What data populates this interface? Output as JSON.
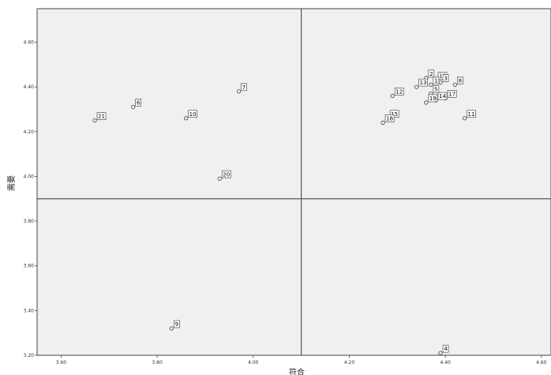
{
  "chart_data": {
    "type": "scatter",
    "xlabel": "符合",
    "ylabel": "需要",
    "xlim": [
      3.55,
      4.62
    ],
    "ylim": [
      3.2,
      4.75
    ],
    "x_ticks": [
      "3.60",
      "3.80",
      "4.00",
      "4.20",
      "4.40",
      "4.60"
    ],
    "y_ticks": [
      "3.20",
      "3.40",
      "3.60",
      "3.80",
      "4.00",
      "4.20",
      "4.40",
      "4.60"
    ],
    "reference_lines": {
      "x": 4.1,
      "y": 3.9
    },
    "grid": false,
    "colors": {
      "plot_background": "#f0f0f0",
      "marker": "#555555",
      "reference_line": "#555555"
    },
    "points": [
      {
        "label": "21",
        "x": 3.67,
        "y": 4.25
      },
      {
        "label": "6",
        "x": 3.75,
        "y": 4.31
      },
      {
        "label": "10",
        "x": 3.86,
        "y": 4.26
      },
      {
        "label": "7",
        "x": 3.97,
        "y": 4.38
      },
      {
        "label": "20",
        "x": 3.93,
        "y": 3.99
      },
      {
        "label": "9",
        "x": 3.83,
        "y": 3.32
      },
      {
        "label": "4",
        "x": 4.39,
        "y": 3.21
      },
      {
        "label": "2",
        "x": 4.36,
        "y": 4.44
      },
      {
        "label": "18",
        "x": 4.38,
        "y": 4.43
      },
      {
        "label": "3",
        "x": 4.39,
        "y": 4.42
      },
      {
        "label": "1",
        "x": 4.37,
        "y": 4.41
      },
      {
        "label": "13",
        "x": 4.34,
        "y": 4.4
      },
      {
        "label": "12",
        "x": 4.29,
        "y": 4.36
      },
      {
        "label": "8",
        "x": 4.42,
        "y": 4.41
      },
      {
        "label": "5",
        "x": 4.37,
        "y": 4.37
      },
      {
        "label": "17",
        "x": 4.4,
        "y": 4.35
      },
      {
        "label": "14",
        "x": 4.38,
        "y": 4.34
      },
      {
        "label": "19",
        "x": 4.36,
        "y": 4.33
      },
      {
        "label": "15",
        "x": 4.28,
        "y": 4.26
      },
      {
        "label": "16",
        "x": 4.27,
        "y": 4.24
      },
      {
        "label": "11",
        "x": 4.44,
        "y": 4.26
      }
    ]
  }
}
